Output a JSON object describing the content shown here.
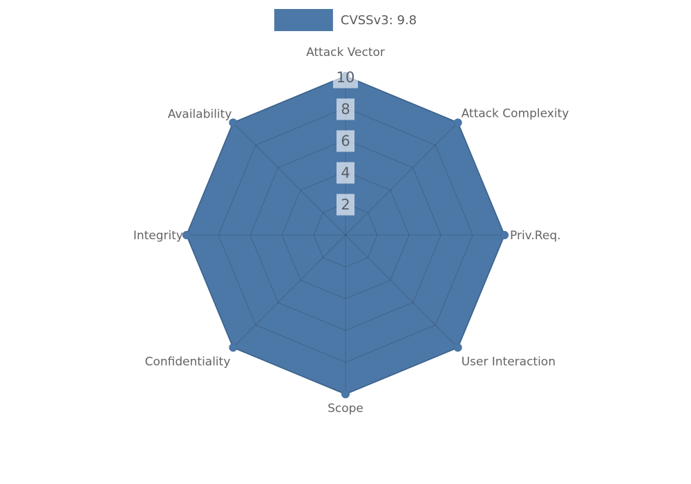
{
  "legend": {
    "label": "CVSSv3: 9.8"
  },
  "chart_data": {
    "type": "radar",
    "title": "CVSSv3: 9.8",
    "categories": [
      "Attack Vector",
      "Attack Complexity",
      "Priv.Req.",
      "User Interaction",
      "Scope",
      "Confidentiality",
      "Integrity",
      "Availability"
    ],
    "series": [
      {
        "name": "CVSSv3: 9.8",
        "values": [
          10,
          10,
          10,
          10,
          10,
          10,
          10,
          10
        ]
      }
    ],
    "axis_min": 0,
    "axis_max": 10,
    "tick_values": [
      2,
      4,
      6,
      8,
      10
    ],
    "tick_labels": [
      "2",
      "4",
      "6",
      "8",
      "10"
    ],
    "grid": true,
    "legend_position": "top",
    "colors": {
      "series_fill": "#4c78a8",
      "series_edge": "#4571a1",
      "grid_line": "rgba(45,55,65,0.32)",
      "axis_label": "#646464",
      "tick_text": "#565e68",
      "tick_box": "rgba(255,255,255,0.62)"
    }
  }
}
